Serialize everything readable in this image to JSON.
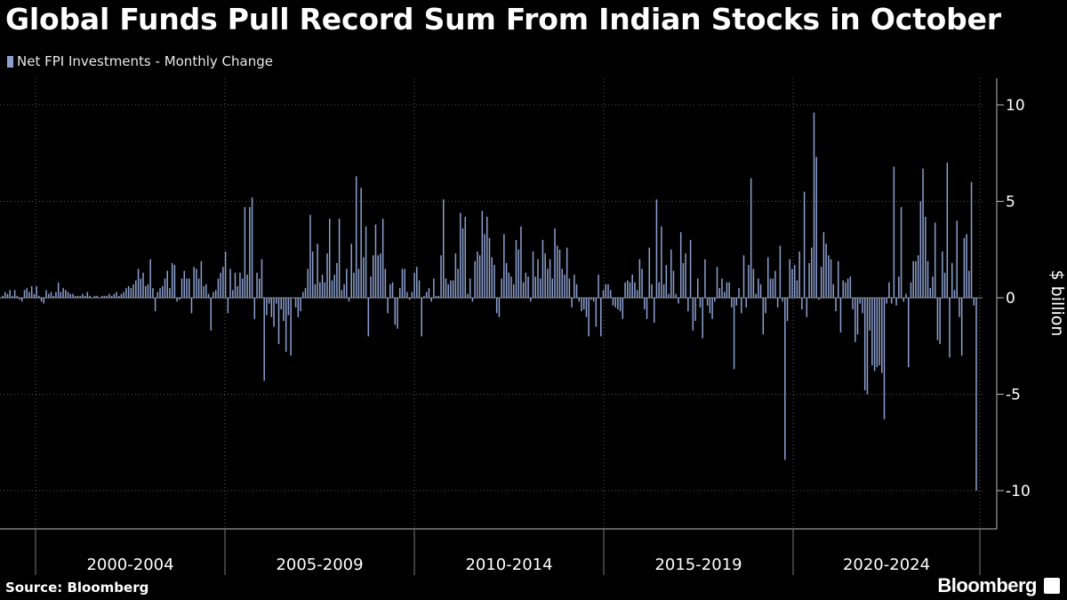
{
  "chart_data": {
    "type": "bar",
    "title": "Global Funds Pull Record Sum From Indian Stocks in October",
    "legend": "Net FPI Investments - Monthly Change",
    "ylabel": "$ billion",
    "ylim": [
      -11,
      11
    ],
    "yticks": [
      10,
      5,
      0,
      -5,
      -10
    ],
    "grid": true,
    "legend_position": "top-left",
    "period_labels": [
      "2000-2004",
      "2005-2009",
      "2010-2014",
      "2015-2019",
      "2020-2024"
    ],
    "x_start": "2000-01",
    "x_end": "2024-10",
    "colors": {
      "bar": "#8c9fcf",
      "grid": "#5a5a5a",
      "background": "#000000",
      "text": "#ffffff"
    },
    "series": [
      {
        "name": "Net FPI Investments - Monthly Change",
        "values": [
          0.1,
          0.3,
          0.2,
          0.4,
          0.1,
          0.4,
          0.1,
          -0.1,
          -0.2,
          0.4,
          0.5,
          0.3,
          0.6,
          0.2,
          0.6,
          0.1,
          -0.2,
          -0.3,
          0.4,
          0.2,
          0.3,
          0.1,
          0.3,
          0.8,
          0.3,
          0.5,
          0.4,
          0.3,
          0.2,
          0.2,
          0.1,
          0.1,
          0.1,
          0.2,
          0.1,
          0.3,
          0.1,
          0.0,
          0.1,
          0.1,
          0.0,
          0.1,
          0.1,
          0.1,
          0.2,
          0.1,
          0.2,
          0.3,
          0.1,
          0.2,
          0.3,
          0.5,
          0.6,
          0.5,
          0.7,
          0.9,
          1.5,
          1.0,
          1.3,
          0.6,
          0.7,
          2.0,
          0.5,
          -0.7,
          0.3,
          0.5,
          0.6,
          1.0,
          1.4,
          0.5,
          1.8,
          1.7,
          -0.2,
          -0.1,
          1.0,
          1.4,
          1.0,
          1.0,
          -0.8,
          1.6,
          1.5,
          1.0,
          1.9,
          0.6,
          0.7,
          0.2,
          -1.7,
          0.3,
          0.4,
          1.0,
          1.3,
          1.6,
          2.4,
          -0.8,
          1.5,
          0.4,
          1.3,
          0.6,
          1.3,
          1.0,
          4.7,
          1.2,
          4.7,
          5.2,
          -1.1,
          1.3,
          1.0,
          2.0,
          -4.3,
          -0.9,
          -0.3,
          -1.0,
          -1.5,
          -0.3,
          -2.4,
          -0.6,
          -1.2,
          -2.8,
          -0.9,
          -3.0,
          0.0,
          -0.5,
          -1.0,
          -0.7,
          0.3,
          0.5,
          1.5,
          4.3,
          2.4,
          0.7,
          2.8,
          0.8,
          1.2,
          0.8,
          2.3,
          4.1,
          0.9,
          1.2,
          1.8,
          4.1,
          0.4,
          0.7,
          1.5,
          -0.2,
          2.8,
          1.3,
          6.3,
          1.5,
          5.7,
          2.1,
          3.7,
          -2.0,
          1.1,
          2.2,
          3.8,
          2.2,
          2.3,
          4.1,
          1.5,
          -0.8,
          0.7,
          0.8,
          -1.4,
          -1.6,
          0.5,
          1.5,
          1.5,
          0.3,
          -0.1,
          0.3,
          1.3,
          1.6,
          0.9,
          -2.0,
          0.1,
          0.3,
          0.5,
          -0.2,
          1.0,
          0.1,
          0.1,
          2.2,
          5.1,
          1.0,
          0.7,
          0.9,
          0.9,
          2.3,
          1.5,
          4.4,
          3.6,
          4.2,
          0.2,
          1.0,
          -0.2,
          1.9,
          2.4,
          2.2,
          4.5,
          3.3,
          4.2,
          3.1,
          2.1,
          1.7,
          -0.8,
          -1.0,
          1.0,
          3.3,
          1.8,
          1.3,
          1.1,
          0.7,
          3.0,
          2.5,
          3.7,
          0.8,
          1.3,
          1.1,
          -0.2,
          2.4,
          1.1,
          2.0,
          1.0,
          3.0,
          2.3,
          1.5,
          2.0,
          1.0,
          3.6,
          2.7,
          2.5,
          1.5,
          1.2,
          2.6,
          1.0,
          -0.5,
          1.2,
          0.7,
          -0.2,
          -0.7,
          -0.6,
          -1.0,
          -2.0,
          -0.1,
          -0.2,
          -1.5,
          1.2,
          -2.0,
          0.4,
          0.7,
          0.7,
          0.4,
          -0.4,
          -0.5,
          -0.6,
          -0.7,
          -1.1,
          0.8,
          0.9,
          0.8,
          1.2,
          0.8,
          0.4,
          2.0,
          1.5,
          -0.6,
          -1.1,
          2.6,
          0.7,
          -1.3,
          5.1,
          0.8,
          3.7,
          0.7,
          1.7,
          0.2,
          2.5,
          1.4,
          0.2,
          -0.3,
          3.4,
          1.8,
          2.3,
          -0.7,
          3.0,
          -1.7,
          -1.2,
          1.0,
          -0.5,
          -2.1,
          2.0,
          -0.4,
          -0.8,
          -1.1,
          -0.2,
          1.6,
          0.5,
          1.0,
          0.3,
          0.8,
          0.8,
          -0.5,
          -3.7,
          -0.4,
          0.5,
          -0.8,
          2.2,
          -0.5,
          1.7,
          6.2,
          1.5,
          0.2,
          1.0,
          0.7,
          -1.9,
          -0.8,
          2.1,
          1.0,
          1.0,
          1.4,
          -0.5,
          2.7,
          -0.2,
          -8.4,
          -1.2,
          2.0,
          1.5,
          1.7,
          0.9,
          2.4,
          -0.6,
          5.5,
          -1.0,
          1.8,
          2.6,
          9.6,
          7.3,
          -0.1,
          1.6,
          3.4,
          2.8,
          2.2,
          2.0,
          0.7,
          -0.7,
          1.9,
          -1.8,
          0.9,
          0.8,
          1.0,
          1.1,
          -0.6,
          -2.3,
          -1.9,
          -0.3,
          -0.8,
          -4.8,
          -5.0,
          -1.7,
          -3.5,
          -3.8,
          -3.6,
          -3.5,
          -3.9,
          -6.3,
          -0.3,
          0.8,
          -0.3,
          6.8,
          -0.4,
          1.1,
          4.7,
          -0.2,
          0.2,
          -3.6,
          0.8,
          1.9,
          1.9,
          2.2,
          5.0,
          6.7,
          4.2,
          1.9,
          0.5,
          1.1,
          3.9,
          -2.2,
          -2.4,
          2.4,
          1.3,
          7.0,
          -3.1,
          1.8,
          0.4,
          4.0,
          -1.0,
          -3.0,
          3.1,
          3.3,
          1.4,
          6.0,
          -0.4,
          -10.0
        ]
      }
    ]
  },
  "footer": {
    "source": "Source: Bloomberg",
    "brand": "Bloomberg"
  }
}
